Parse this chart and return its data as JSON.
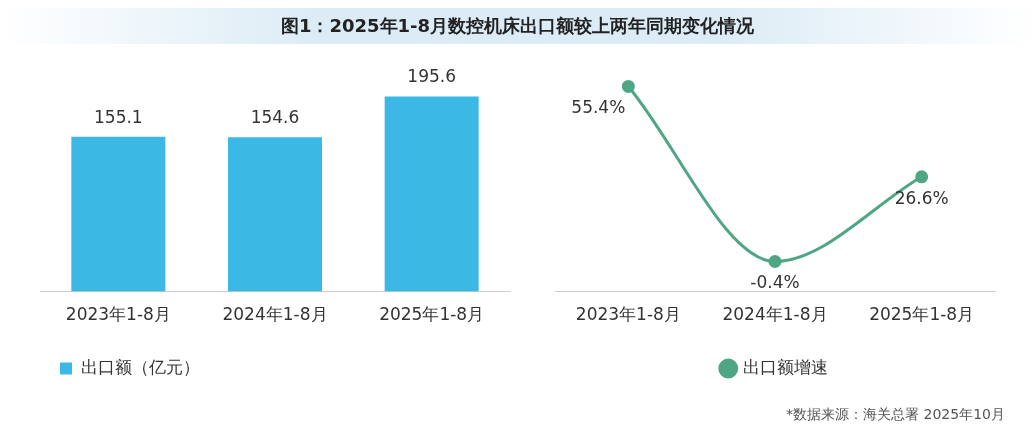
{
  "chart_data": [
    {
      "type": "bar",
      "title": "图1：2025年1-8月数控机床出口额较上两年同期变化情况",
      "categories": [
        "2023年1-8月",
        "2024年1-8月",
        "2025年1-8月"
      ],
      "series": [
        {
          "name": "出口额（亿元）",
          "color": "#3bb9e4",
          "values": [
            155.1,
            154.6,
            195.6
          ]
        }
      ],
      "data_labels": true,
      "legend": "bottom left",
      "grid": false
    },
    {
      "type": "line",
      "categories": [
        "2023年1-8月",
        "2024年1-8月",
        "2025年1-8月"
      ],
      "series": [
        {
          "name": "出口额增速",
          "color": "#4ea683",
          "values": [
            55.4,
            -0.4,
            26.6
          ],
          "value_labels": [
            "55.4%",
            "-0.4%",
            "26.6%"
          ]
        }
      ],
      "marker": "circle",
      "legend": "bottom",
      "grid": false,
      "annotations": [
        "*数据来源：海关总署  2025年10月"
      ]
    }
  ]
}
